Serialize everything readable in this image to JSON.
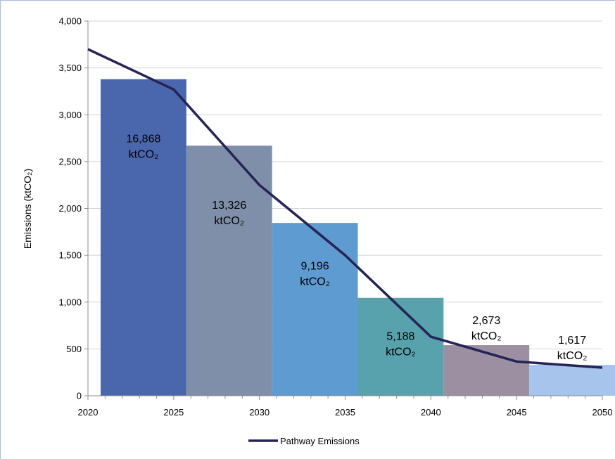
{
  "chart_data": {
    "type": "bar",
    "xlabel": "",
    "ylabel": "Emissions (ktCO₂)",
    "xlim": [
      2020,
      2050
    ],
    "ylim": [
      0,
      4000
    ],
    "x_ticks": [
      2020,
      2025,
      2030,
      2035,
      2040,
      2045,
      2050
    ],
    "x_tick_labels": [
      "2020",
      "2025",
      "2030",
      "2035",
      "2040",
      "2045",
      "2050"
    ],
    "y_ticks": [
      0,
      500,
      1000,
      1500,
      2000,
      2500,
      3000,
      3500,
      4000
    ],
    "y_tick_labels": [
      "0",
      "500",
      "1,000",
      "1,500",
      "2,000",
      "2,500",
      "3,000",
      "3,500",
      "4,000"
    ],
    "grid": true,
    "legend_position": "bottom-center",
    "blocks": [
      {
        "start": 2020,
        "end": 2025,
        "value": 3380,
        "label_line1": "16,868",
        "label_line2": "ktCO₂",
        "color": "#4a66ad"
      },
      {
        "start": 2025,
        "end": 2030,
        "value": 2670,
        "label_line1": "13,326",
        "label_line2": "ktCO₂",
        "color": "#7f8fa9"
      },
      {
        "start": 2030,
        "end": 2035,
        "value": 1845,
        "label_line1": "9,196",
        "label_line2": "ktCO₂",
        "color": "#5e9bd1"
      },
      {
        "start": 2035,
        "end": 2040,
        "value": 1045,
        "label_line1": "5,188",
        "label_line2": "ktCO₂",
        "color": "#57a2ac"
      },
      {
        "start": 2040,
        "end": 2045,
        "value": 540,
        "label_line1": "2,673",
        "label_line2": "ktCO₂",
        "color": "#9c8fa1"
      },
      {
        "start": 2045,
        "end": 2050,
        "value": 330,
        "label_line1": "1,617",
        "label_line2": "ktCO₂",
        "color": "#a7c4ed"
      }
    ],
    "series": [
      {
        "name": "Pathway Emissions",
        "type": "line",
        "color": "#252454",
        "x": [
          2020,
          2025,
          2030,
          2035,
          2040,
          2045,
          2050
        ],
        "y": [
          3700,
          3270,
          2250,
          1500,
          630,
          365,
          300
        ]
      }
    ]
  }
}
